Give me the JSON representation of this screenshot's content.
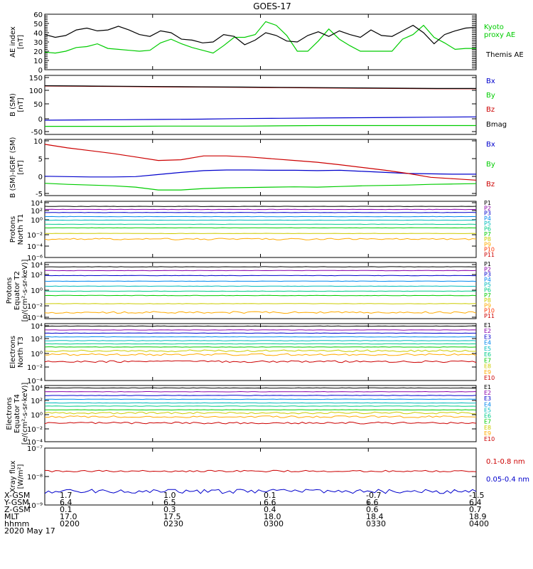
{
  "title": "GOES-17",
  "chart_data": [
    {
      "id": "ae",
      "type": "line",
      "ylabel": [
        "AE index",
        "[nT]"
      ],
      "yticks": [
        "60",
        "50",
        "40",
        "30",
        "20",
        "10",
        "0"
      ],
      "ylim": [
        0,
        60
      ],
      "series": [
        {
          "name": "Kyoto\nproxy AE",
          "color": "#00cc00",
          "values": [
            19,
            18,
            20,
            24,
            25,
            28,
            23,
            22,
            21,
            20,
            21,
            29,
            33,
            28,
            24,
            21,
            18,
            26,
            35,
            35,
            38,
            52,
            48,
            37,
            20,
            20,
            31,
            44,
            33,
            26,
            20,
            20,
            20,
            20,
            33,
            38,
            48,
            35,
            29,
            22,
            23,
            23
          ]
        },
        {
          "name": "Themis AE",
          "color": "#000000",
          "values": [
            38,
            35,
            37,
            43,
            45,
            42,
            43,
            47,
            43,
            38,
            36,
            42,
            40,
            33,
            32,
            29,
            30,
            38,
            36,
            27,
            32,
            40,
            37,
            31,
            30,
            37,
            41,
            36,
            42,
            38,
            35,
            43,
            37,
            36,
            42,
            48,
            40,
            28,
            38,
            42,
            45,
            46
          ]
        }
      ]
    },
    {
      "id": "bsm",
      "type": "line",
      "ylabel": [
        "B (SM)",
        "[nT]"
      ],
      "yticks": [
        "150",
        "100",
        "50",
        "0",
        "-50"
      ],
      "ylim": [
        -62,
        150
      ],
      "series": [
        {
          "name": "Bx",
          "color": "#0000cc",
          "values": [
            -11,
            -10,
            -9,
            -8,
            -7,
            -5,
            -4,
            -3,
            -2,
            -1,
            0,
            1
          ]
        },
        {
          "name": "By",
          "color": "#00cc00",
          "values": [
            -33,
            -33,
            -33,
            -32,
            -32,
            -32,
            -31,
            -30,
            -30,
            -30,
            -30,
            -30
          ]
        },
        {
          "name": "Bz",
          "color": "#cc0000",
          "values": [
            112,
            111,
            110,
            109,
            108,
            107,
            106,
            105,
            104,
            103,
            102,
            102
          ]
        },
        {
          "name": "Bmag",
          "color": "#000000",
          "values": [
            113,
            112,
            111,
            110,
            109,
            108,
            107,
            106,
            105,
            104,
            103,
            103
          ]
        }
      ]
    },
    {
      "id": "bigrf",
      "type": "line",
      "ylabel": [
        "B (SM)-IGRF (SM)",
        "[nT]"
      ],
      "yticks": [
        "10",
        "5",
        "0",
        "-5"
      ],
      "ylim": [
        -6,
        10
      ],
      "series": [
        {
          "name": "Bx",
          "color": "#0000cc",
          "values": [
            -0.5,
            -0.6,
            -0.7,
            -0.7,
            -0.6,
            0,
            0.6,
            1.1,
            1.3,
            1.3,
            1.2,
            1.2,
            1.1,
            1.2,
            0.9,
            0.6,
            0.3,
            0.2,
            0.1,
            0.1
          ]
        },
        {
          "name": "By",
          "color": "#00cc00",
          "values": [
            -2.5,
            -2.8,
            -3.0,
            -3.2,
            -3.6,
            -4.4,
            -4.4,
            -4.0,
            -3.8,
            -3.7,
            -3.6,
            -3.5,
            -3.6,
            -3.4,
            -3.2,
            -3.1,
            -3.0,
            -2.8,
            -2.7,
            -2.6
          ]
        },
        {
          "name": "Bz",
          "color": "#cc0000",
          "values": [
            8.6,
            7.6,
            6.8,
            6.0,
            5.0,
            4.0,
            4.2,
            5.3,
            5.3,
            5.0,
            4.5,
            4.0,
            3.5,
            2.8,
            2.0,
            1.2,
            0.3,
            -0.8,
            -1.2,
            -1.6
          ]
        }
      ]
    },
    {
      "id": "pn",
      "type": "line",
      "ylabel": [
        "Protons",
        "North T1"
      ],
      "yticks": [
        "10⁴",
        "10²",
        "10⁰",
        "10⁻²",
        "10⁻⁴",
        "10⁻⁶"
      ],
      "ylog": [
        -7,
        4
      ],
      "series": [
        {
          "name": "P1",
          "color": "#000000",
          "logv": 3.0
        },
        {
          "name": "P2",
          "color": "#8800aa",
          "logv": 2.4
        },
        {
          "name": "P3",
          "color": "#0000cc",
          "logv": 1.8
        },
        {
          "name": "P4",
          "color": "#0088ee",
          "logv": 1.0
        },
        {
          "name": "P5",
          "color": "#00bbbb",
          "logv": 0.3
        },
        {
          "name": "P6",
          "color": "#00cc88",
          "logv": -0.5
        },
        {
          "name": "P7",
          "color": "#00cc00",
          "logv": -1.2
        },
        {
          "name": "P8",
          "color": "#cccc00",
          "logv": -2.3
        },
        {
          "name": "P9",
          "color": "#ffaa00",
          "logv": -3.4
        },
        {
          "name": "P10",
          "color": "#ff3300",
          "logv": null
        },
        {
          "name": "P11",
          "color": "#cc0000",
          "logv": null
        }
      ]
    },
    {
      "id": "pe",
      "type": "line",
      "ylabel": [
        "Protons",
        "Equator T2",
        "[p/(cm²-s-sr-keV)]"
      ],
      "yticks": [
        "10⁴",
        "10²",
        "10⁰",
        "10⁻²",
        "10⁻⁴"
      ],
      "ylog": [
        -5,
        4
      ],
      "series": [
        {
          "name": "P1",
          "color": "#000000",
          "logv": 3.3
        },
        {
          "name": "P2",
          "color": "#8800aa",
          "logv": 2.7
        },
        {
          "name": "P3",
          "color": "#0000cc",
          "logv": 1.9
        },
        {
          "name": "P4",
          "color": "#0088ee",
          "logv": 1.0
        },
        {
          "name": "P5",
          "color": "#00bbbb",
          "logv": 0.2
        },
        {
          "name": "P6",
          "color": "#00cc88",
          "logv": -0.6
        },
        {
          "name": "P7",
          "color": "#00cc00",
          "logv": -1.3
        },
        {
          "name": "P8",
          "color": "#cccc00",
          "logv": -2.6
        },
        {
          "name": "P9",
          "color": "#ffaa00",
          "logv": -4.0
        },
        {
          "name": "P10",
          "color": "#ff3300",
          "logv": null
        },
        {
          "name": "P11",
          "color": "#cc0000",
          "logv": null
        }
      ]
    },
    {
      "id": "en",
      "type": "line",
      "ylabel": [
        "Electrons",
        "North T3"
      ],
      "yticks": [
        "10⁴",
        "10²",
        "10⁰",
        "10⁻²",
        "10⁻⁴"
      ],
      "ylog": [
        -5,
        4
      ],
      "series": [
        {
          "name": "E1",
          "color": "#000000",
          "logv": 3.6
        },
        {
          "name": "E2",
          "color": "#8800aa",
          "logv": 3.0
        },
        {
          "name": "E3",
          "color": "#0000cc",
          "logv": 2.5
        },
        {
          "name": "E4",
          "color": "#0088ee",
          "logv": 1.9
        },
        {
          "name": "E5",
          "color": "#00bbbb",
          "logv": 1.3
        },
        {
          "name": "E6",
          "color": "#00cc88",
          "logv": 0.8
        },
        {
          "name": "E7",
          "color": "#00cc00",
          "logv": 0.3
        },
        {
          "name": "E8",
          "color": "#cccc00",
          "logv": -0.3
        },
        {
          "name": "E9",
          "color": "#ffaa00",
          "logv": -0.9
        },
        {
          "name": "E10",
          "color": "#cc0000",
          "logv": -2.0
        }
      ]
    },
    {
      "id": "ee",
      "type": "line",
      "ylabel": [
        "Electrons",
        "Equator T4",
        "[e/(cm²-s-sr-keV)]"
      ],
      "yticks": [
        "10⁴",
        "10²",
        "10⁰",
        "10⁻²",
        "10⁻⁴"
      ],
      "ylog": [
        -5,
        4
      ],
      "series": [
        {
          "name": "E1",
          "color": "#000000",
          "logv": 3.6
        },
        {
          "name": "E2",
          "color": "#8800aa",
          "logv": 3.0
        },
        {
          "name": "E3",
          "color": "#0000cc",
          "logv": 2.4
        },
        {
          "name": "E4",
          "color": "#0088ee",
          "logv": 1.8
        },
        {
          "name": "E5",
          "color": "#00bbbb",
          "logv": 1.2
        },
        {
          "name": "E6",
          "color": "#00cc88",
          "logv": 0.7
        },
        {
          "name": "E7",
          "color": "#00cc00",
          "logv": 0.1
        },
        {
          "name": "E8",
          "color": "#cccc00",
          "logv": -0.4
        },
        {
          "name": "E9",
          "color": "#ffaa00",
          "logv": -1.0
        },
        {
          "name": "E10",
          "color": "#cc0000",
          "logv": -2.0
        }
      ]
    },
    {
      "id": "xray",
      "type": "line",
      "ylabel": [
        "Xray flux",
        "[W/m²]"
      ],
      "yticks": [
        "10⁻⁷",
        "10⁻⁸",
        "10⁻⁹"
      ],
      "ylog": [
        -9.1,
        -7
      ],
      "series": [
        {
          "name": "0.1-0.8 nm",
          "color": "#cc0000",
          "logv": -7.85
        },
        {
          "name": "0.05-0.4 nm",
          "color": "#0000cc",
          "logv": -8.6
        }
      ]
    }
  ],
  "footer": {
    "labels": [
      "X-GSM",
      "Y-GSM",
      "Z-GSM",
      "MLT",
      "hhmm",
      "2020 May 17"
    ],
    "columns": [
      [
        "1.7",
        "6.4",
        "0.1",
        "17.0",
        "0200"
      ],
      [
        "1.0",
        "6.5",
        "0.3",
        "17.5",
        "0230"
      ],
      [
        "0.1",
        "6.6",
        "0.4",
        "18.0",
        "0300"
      ],
      [
        "-0.7",
        "6.6",
        "0.6",
        "18.4",
        "0330"
      ],
      [
        "-1.5",
        "6.4",
        "0.7",
        "18.9",
        "0400"
      ]
    ]
  }
}
